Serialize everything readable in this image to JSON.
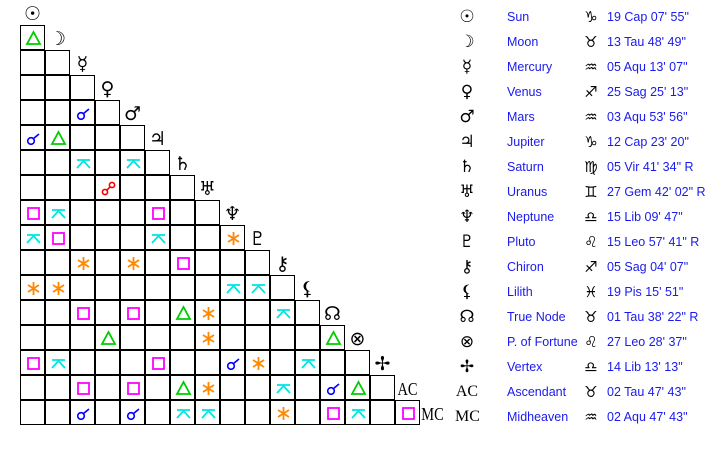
{
  "planets": [
    {
      "glyph": "☉",
      "name": "Sun",
      "sign_glyph": "♑",
      "position": "19 Cap 07' 55\""
    },
    {
      "glyph": "☽",
      "name": "Moon",
      "sign_glyph": "♉",
      "position": "13 Tau 48' 49\""
    },
    {
      "glyph": "☿",
      "name": "Mercury",
      "sign_glyph": "♒",
      "position": "05 Aqu 13' 07\""
    },
    {
      "glyph": "♀",
      "name": "Venus",
      "sign_glyph": "♐",
      "position": "25 Sag 25' 13\""
    },
    {
      "glyph": "♂",
      "name": "Mars",
      "sign_glyph": "♒",
      "position": "03 Aqu 53' 56\""
    },
    {
      "glyph": "♃",
      "name": "Jupiter",
      "sign_glyph": "♑",
      "position": "12 Cap 23' 20\""
    },
    {
      "glyph": "♄",
      "name": "Saturn",
      "sign_glyph": "♍",
      "position": "05 Vir 41' 34\" R"
    },
    {
      "glyph": "♅",
      "name": "Uranus",
      "sign_glyph": "♊",
      "position": "27 Gem 42' 02\" R"
    },
    {
      "glyph": "♆",
      "name": "Neptune",
      "sign_glyph": "♎",
      "position": "15 Lib 09' 47\""
    },
    {
      "glyph": "♇",
      "name": "Pluto",
      "sign_glyph": "♌",
      "position": "15 Leo 57' 41\" R"
    },
    {
      "glyph": "⚷",
      "name": "Chiron",
      "sign_glyph": "♐",
      "position": "05 Sag 04' 07\""
    },
    {
      "glyph": "⚸",
      "name": "Lilith",
      "sign_glyph": "♓",
      "position": "19 Pis 15' 51\""
    },
    {
      "glyph": "☊",
      "name": "True Node",
      "sign_glyph": "♉",
      "position": "01 Tau 38' 22\" R"
    },
    {
      "glyph": "⊗",
      "name": "P. of Fortune",
      "sign_glyph": "♌",
      "position": "27 Leo 28' 37\""
    },
    {
      "glyph": "✢",
      "name": "Vertex",
      "sign_glyph": "♎",
      "position": "14 Lib 13' 13\""
    },
    {
      "glyph": "AC",
      "name": "Ascendant",
      "sign_glyph": "♉",
      "position": "02 Tau 47' 43\""
    },
    {
      "glyph": "MC",
      "name": "Midheaven",
      "sign_glyph": "♒",
      "position": "02 Aqu 47' 43\""
    }
  ],
  "aspect_colors": {
    "trine": "#00cc00",
    "square": "#ff00ff",
    "sextile": "#ff8800",
    "conjunction": "#0000ff",
    "opposition": "#ff0000",
    "quincunx": "#00e5e5"
  },
  "aspects": [
    [
      1,
      0,
      "trine"
    ],
    [
      4,
      2,
      "conjunction"
    ],
    [
      5,
      0,
      "conjunction"
    ],
    [
      5,
      1,
      "trine"
    ],
    [
      6,
      2,
      "quincunx"
    ],
    [
      6,
      4,
      "quincunx"
    ],
    [
      7,
      3,
      "opposition"
    ],
    [
      8,
      0,
      "square"
    ],
    [
      8,
      1,
      "quincunx"
    ],
    [
      8,
      5,
      "square"
    ],
    [
      9,
      0,
      "quincunx"
    ],
    [
      9,
      1,
      "square"
    ],
    [
      9,
      5,
      "quincunx"
    ],
    [
      9,
      8,
      "sextile"
    ],
    [
      10,
      2,
      "sextile"
    ],
    [
      10,
      4,
      "sextile"
    ],
    [
      10,
      6,
      "square"
    ],
    [
      11,
      0,
      "sextile"
    ],
    [
      11,
      1,
      "sextile"
    ],
    [
      11,
      8,
      "quincunx"
    ],
    [
      11,
      9,
      "quincunx"
    ],
    [
      12,
      2,
      "square"
    ],
    [
      12,
      4,
      "square"
    ],
    [
      12,
      6,
      "trine"
    ],
    [
      12,
      7,
      "sextile"
    ],
    [
      12,
      10,
      "quincunx"
    ],
    [
      13,
      3,
      "trine"
    ],
    [
      13,
      7,
      "sextile"
    ],
    [
      13,
      12,
      "trine"
    ],
    [
      14,
      0,
      "square"
    ],
    [
      14,
      1,
      "quincunx"
    ],
    [
      14,
      5,
      "square"
    ],
    [
      14,
      8,
      "conjunction"
    ],
    [
      14,
      9,
      "sextile"
    ],
    [
      14,
      11,
      "quincunx"
    ],
    [
      15,
      2,
      "square"
    ],
    [
      15,
      4,
      "square"
    ],
    [
      15,
      6,
      "trine"
    ],
    [
      15,
      7,
      "sextile"
    ],
    [
      15,
      10,
      "quincunx"
    ],
    [
      15,
      12,
      "conjunction"
    ],
    [
      15,
      13,
      "trine"
    ],
    [
      16,
      2,
      "conjunction"
    ],
    [
      16,
      4,
      "conjunction"
    ],
    [
      16,
      6,
      "quincunx"
    ],
    [
      16,
      7,
      "quincunx"
    ],
    [
      16,
      10,
      "sextile"
    ],
    [
      16,
      12,
      "square"
    ],
    [
      16,
      13,
      "quincunx"
    ],
    [
      16,
      15,
      "square"
    ]
  ]
}
